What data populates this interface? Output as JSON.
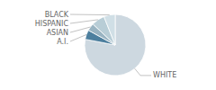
{
  "chart_data": {
    "type": "pie",
    "categories": [
      "WHITE",
      "A.I.",
      "ASIAN",
      "HISPANIC",
      "BLACK"
    ],
    "values": [
      78,
      5,
      4,
      7,
      6
    ],
    "colors": [
      "#cdd8e0",
      "#4d7f9e",
      "#9ab4c2",
      "#b8cdd6",
      "#d0dfe6"
    ]
  }
}
